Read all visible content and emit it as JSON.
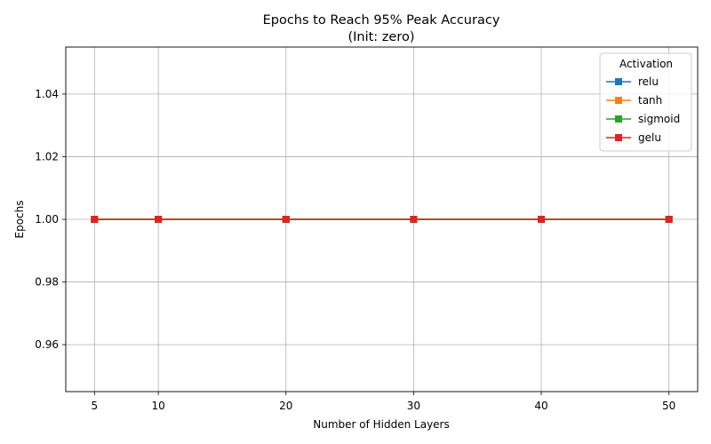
{
  "chart_data": {
    "type": "line",
    "title": "Epochs to Reach 95% Peak Accuracy",
    "subtitle": "(Init: zero)",
    "xlabel": "Number of Hidden Layers",
    "ylabel": "Epochs",
    "x": [
      5,
      10,
      20,
      30,
      40,
      50
    ],
    "xticks": [
      "5",
      "10",
      "20",
      "30",
      "40",
      "50"
    ],
    "xlim": [
      2.75,
      52.25
    ],
    "ylim": [
      0.945,
      1.055
    ],
    "yticks": [
      "0.96",
      "0.98",
      "1.00",
      "1.02",
      "1.04"
    ],
    "grid": true,
    "legend": {
      "title": "Activation",
      "placement": "top-right"
    },
    "series": [
      {
        "name": "relu",
        "color": "#1f77b4",
        "marker": "square",
        "values": [
          1,
          1,
          1,
          1,
          1,
          1
        ]
      },
      {
        "name": "tanh",
        "color": "#ff7f0e",
        "marker": "square",
        "values": [
          1,
          1,
          1,
          1,
          1,
          1
        ]
      },
      {
        "name": "sigmoid",
        "color": "#2ca02c",
        "marker": "square",
        "values": [
          1,
          1,
          1,
          1,
          1,
          1
        ]
      },
      {
        "name": "gelu",
        "color": "#d62728",
        "marker": "square",
        "values": [
          1,
          1,
          1,
          1,
          1,
          1
        ]
      }
    ]
  }
}
